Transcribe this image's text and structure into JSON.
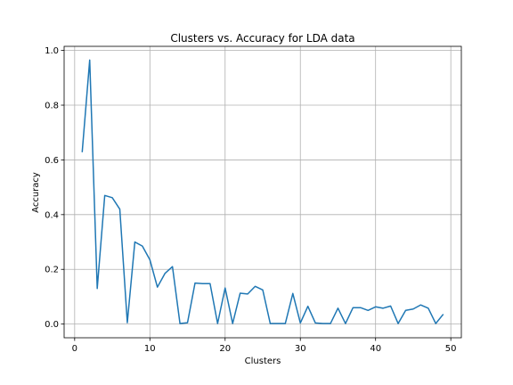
{
  "chart_data": {
    "type": "line",
    "title": "Clusters vs. Accuracy for LDA data",
    "xlabel": "Clusters",
    "ylabel": "Accuracy",
    "xlim": [
      -1.4,
      51.4
    ],
    "ylim": [
      -0.05,
      1.015
    ],
    "xticks": [
      0,
      10,
      20,
      30,
      40,
      50
    ],
    "yticks": [
      0.0,
      0.2,
      0.4,
      0.6,
      0.8,
      1.0
    ],
    "xtick_labels": [
      "0",
      "10",
      "20",
      "30",
      "40",
      "50"
    ],
    "ytick_labels": [
      "0.0",
      "0.2",
      "0.4",
      "0.6",
      "0.8",
      "1.0"
    ],
    "grid": true,
    "series": [
      {
        "color": "#1f77b4",
        "x": [
          1,
          2,
          3,
          4,
          5,
          6,
          7,
          8,
          9,
          10,
          11,
          12,
          13,
          14,
          15,
          16,
          17,
          18,
          19,
          20,
          21,
          22,
          23,
          24,
          25,
          26,
          27,
          28,
          29,
          30,
          31,
          32,
          33,
          34,
          35,
          36,
          37,
          38,
          39,
          40,
          41,
          42,
          43,
          44,
          45,
          46,
          47,
          48,
          49
        ],
        "values": [
          0.628,
          0.965,
          0.13,
          0.47,
          0.462,
          0.42,
          0.005,
          0.3,
          0.285,
          0.235,
          0.135,
          0.185,
          0.21,
          0.002,
          0.005,
          0.15,
          0.148,
          0.148,
          0.002,
          0.132,
          0.002,
          0.113,
          0.11,
          0.138,
          0.125,
          0.002,
          0.002,
          0.002,
          0.112,
          0.004,
          0.065,
          0.004,
          0.002,
          0.002,
          0.058,
          0.002,
          0.06,
          0.06,
          0.05,
          0.063,
          0.058,
          0.066,
          0.002,
          0.05,
          0.055,
          0.07,
          0.058,
          0.002,
          0.036
        ]
      }
    ]
  }
}
